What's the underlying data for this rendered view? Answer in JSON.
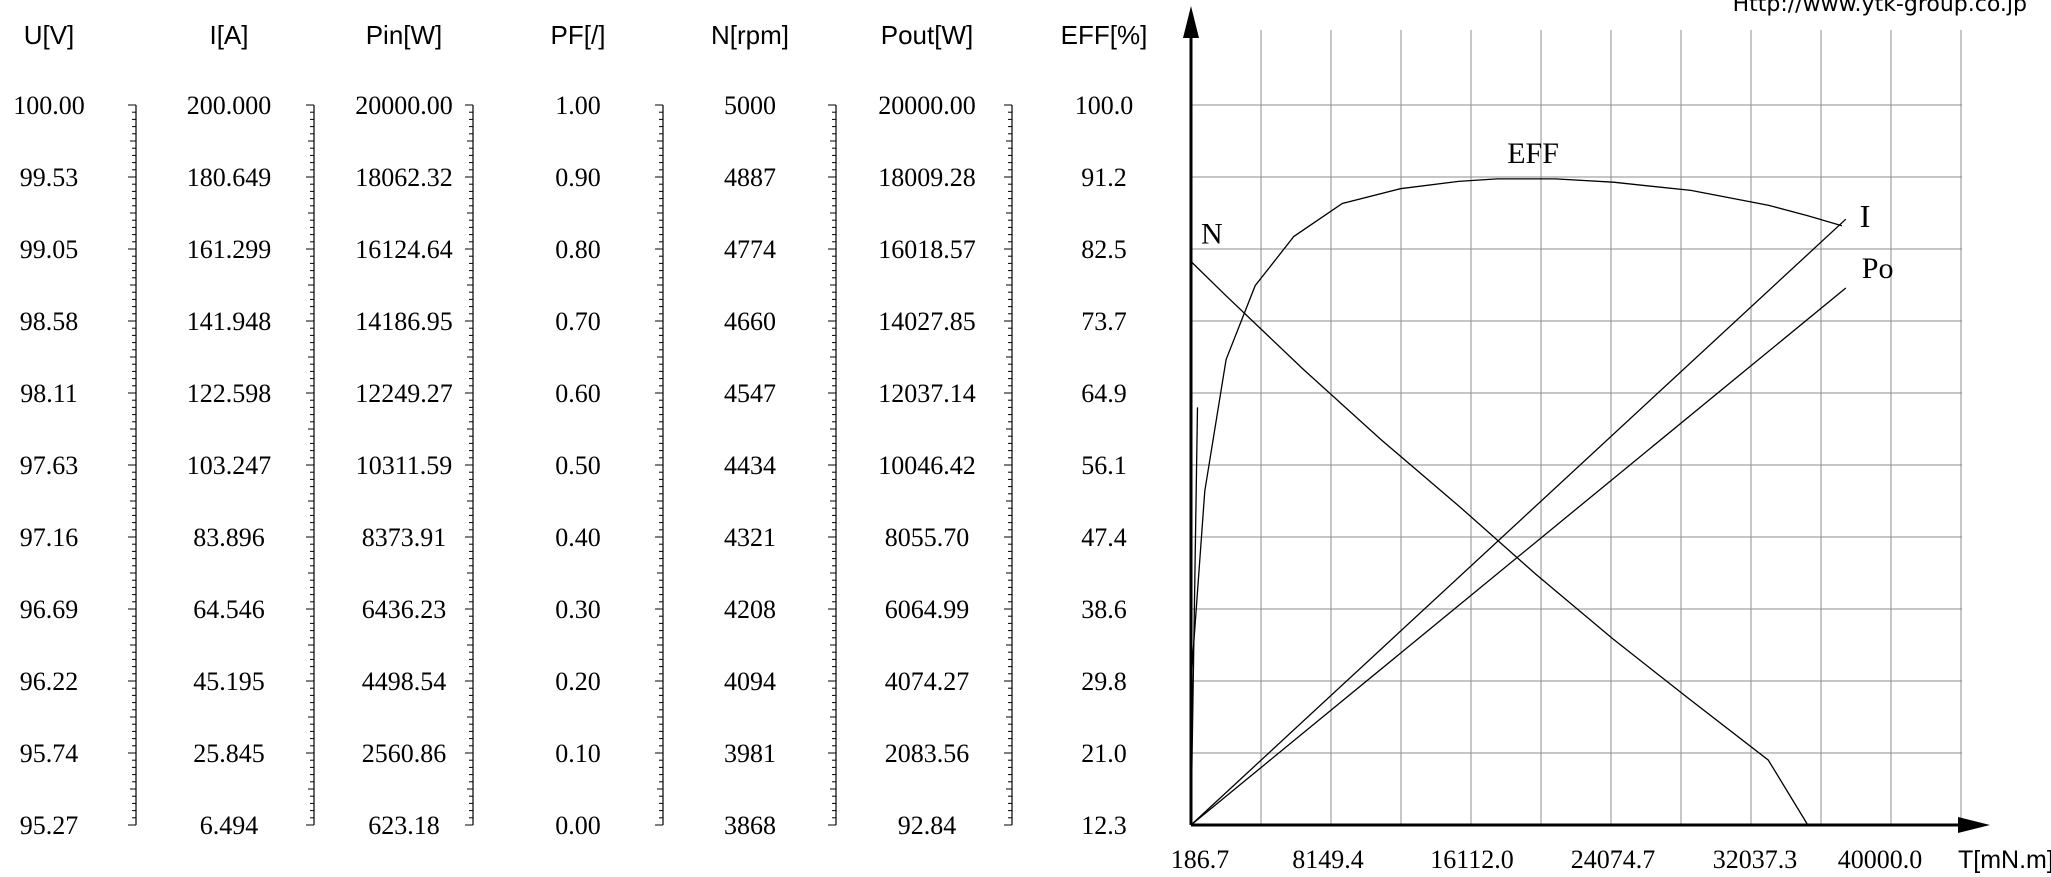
{
  "url": "Http://www.ytk-group.co.jp",
  "chart_data": {
    "type": "line",
    "x_axis": {
      "label": "T[mN.m]",
      "ticks": [
        "186.7",
        "8149.4",
        "16112.0",
        "24074.7",
        "32037.3",
        "40000.0"
      ],
      "range": [
        186.7,
        40000.0
      ]
    },
    "scales": [
      {
        "label": "U[V]",
        "ticks": [
          "100.00",
          "99.53",
          "99.05",
          "98.58",
          "98.11",
          "97.63",
          "97.16",
          "96.69",
          "96.22",
          "95.74",
          "95.27"
        ]
      },
      {
        "label": "I[A]",
        "ticks": [
          "200.000",
          "180.649",
          "161.299",
          "141.948",
          "122.598",
          "103.247",
          "83.896",
          "64.546",
          "45.195",
          "25.845",
          "6.494"
        ]
      },
      {
        "label": "Pin[W]",
        "ticks": [
          "20000.00",
          "18062.32",
          "16124.64",
          "14186.95",
          "12249.27",
          "10311.59",
          "8373.91",
          "6436.23",
          "4498.54",
          "2560.86",
          "623.18"
        ]
      },
      {
        "label": "PF[/]",
        "ticks": [
          "1.00",
          "0.90",
          "0.80",
          "0.70",
          "0.60",
          "0.50",
          "0.40",
          "0.30",
          "0.20",
          "0.10",
          "0.00"
        ]
      },
      {
        "label": "N[rpm]",
        "ticks": [
          "5000",
          "4887",
          "4774",
          "4660",
          "4547",
          "4434",
          "4321",
          "4208",
          "4094",
          "3981",
          "3868"
        ]
      },
      {
        "label": "Pout[W]",
        "ticks": [
          "20000.00",
          "18009.28",
          "16018.57",
          "14027.85",
          "12037.14",
          "10046.42",
          "8055.70",
          "6064.99",
          "4074.27",
          "2083.56",
          "92.84"
        ]
      },
      {
        "label": "EFF[%]",
        "ticks": [
          "100.0",
          "91.2",
          "82.5",
          "73.7",
          "64.9",
          "56.1",
          "47.4",
          "38.6",
          "29.8",
          "21.0",
          "12.3"
        ]
      }
    ],
    "grid": true,
    "series": [
      {
        "name": "EFF",
        "scale": "EFF[%]",
        "points": [
          [
            186.7,
            29.8
          ],
          [
            900,
            53
          ],
          [
            2000,
            69
          ],
          [
            3500,
            78
          ],
          [
            5500,
            84
          ],
          [
            8000,
            88
          ],
          [
            11000,
            89.8
          ],
          [
            14000,
            90.7
          ],
          [
            16000,
            91.0
          ],
          [
            19000,
            91.0
          ],
          [
            22000,
            90.6
          ],
          [
            26000,
            89.6
          ],
          [
            30000,
            87.8
          ],
          [
            32037.3,
            86.5
          ],
          [
            33800,
            85.3
          ]
        ]
      },
      {
        "name": "I",
        "scale": "I[A]",
        "points": [
          [
            186.7,
            6.494
          ],
          [
            34000,
            169.3
          ]
        ]
      },
      {
        "name": "Po",
        "scale": "Pout[W]",
        "points": [
          [
            186.7,
            92.84
          ],
          [
            34000,
            14940
          ]
        ]
      },
      {
        "name": "N",
        "scale": "N[rpm]",
        "points": [
          [
            186.7,
            4754
          ],
          [
            2000,
            4700
          ],
          [
            6000,
            4584
          ],
          [
            10000,
            4474
          ],
          [
            14000,
            4370
          ],
          [
            18000,
            4262
          ],
          [
            22000,
            4160
          ],
          [
            26000,
            4064
          ],
          [
            30000,
            3970
          ],
          [
            32037.3,
            3868
          ]
        ]
      },
      {
        "name": "",
        "scale": "PF[/]",
        "points": [
          [
            186.7,
            0.0
          ],
          [
            520,
            0.58
          ]
        ]
      }
    ]
  }
}
